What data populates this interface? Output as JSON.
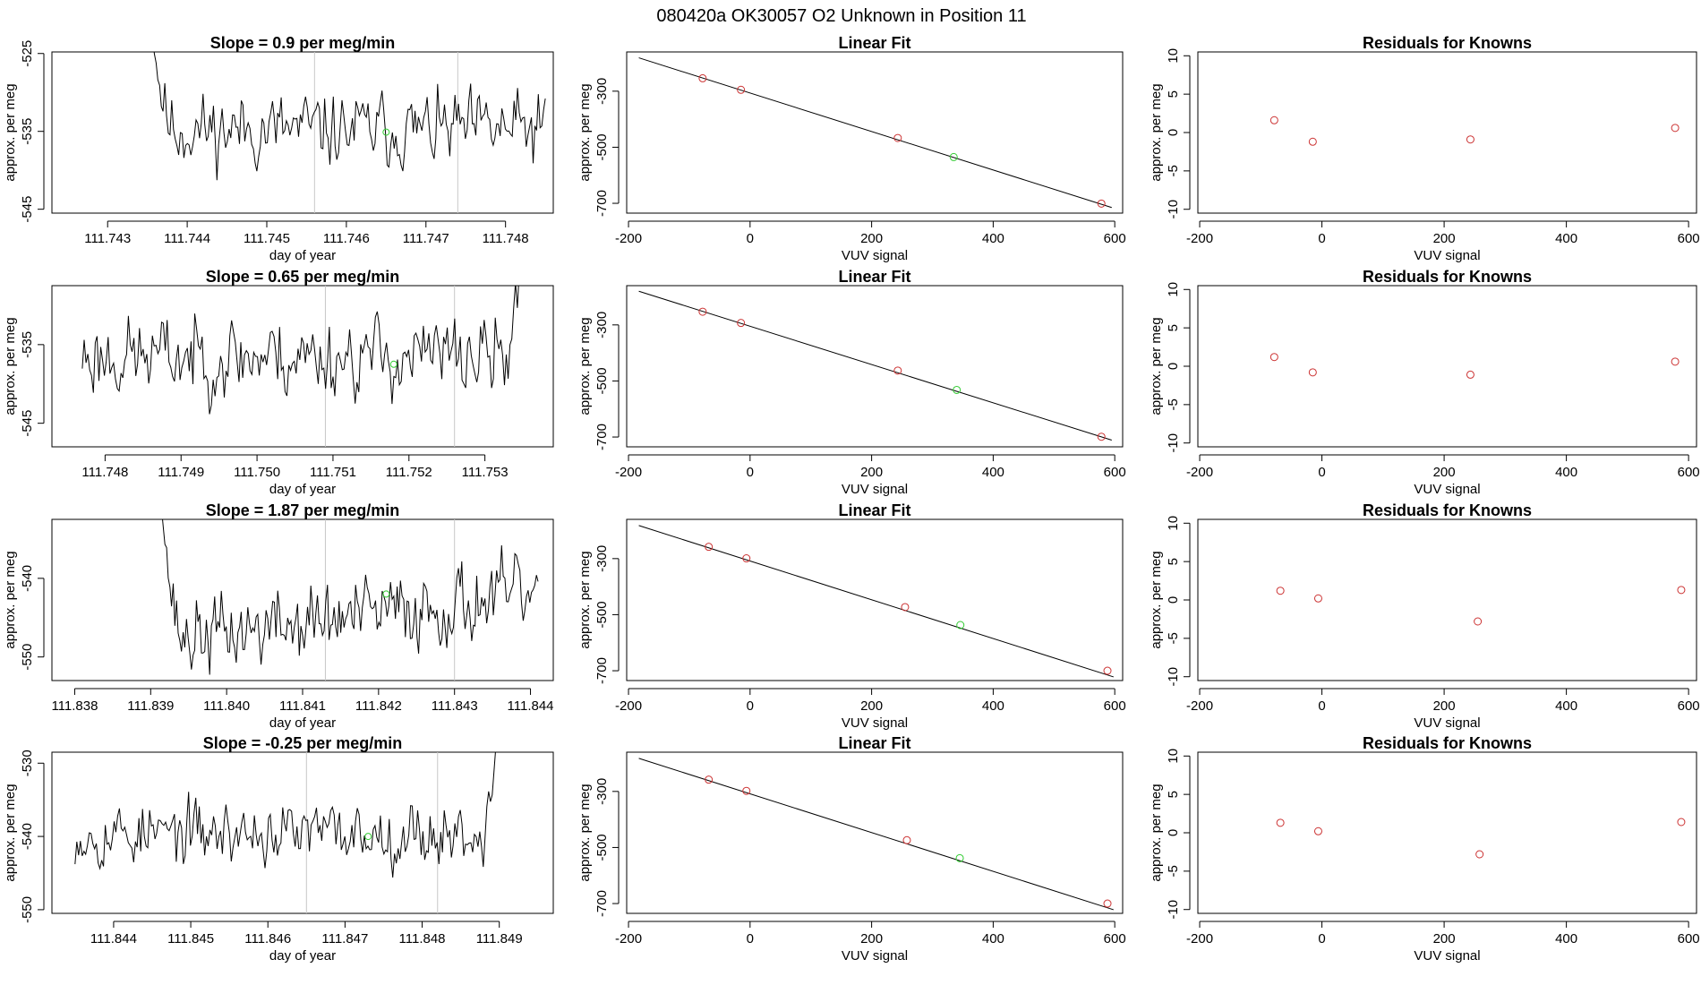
{
  "figure_title": "080420a      OK30057    O2 Unknown in Position  11",
  "colors": {
    "line": "#000000",
    "known": "#cc3333",
    "unknown": "#33cc33",
    "vline": "#c8c8c8"
  },
  "chart_data": [
    {
      "type": "line",
      "panel": "timeseries",
      "row": 0,
      "title": "Slope =  0.9  per meg/min",
      "xlabel": "day of year",
      "ylabel": "approx. per meg",
      "xlim": [
        111.7423,
        111.7486
      ],
      "ylim": [
        -545.5,
        -524.8
      ],
      "xticks": [
        "111.743",
        "111.744",
        "111.745",
        "111.746",
        "111.747",
        "111.748"
      ],
      "xtick_values": [
        111.743,
        111.744,
        111.745,
        111.746,
        111.747,
        111.748
      ],
      "yticks": [
        "-545",
        "-535",
        "-525"
      ],
      "ytick_values": [
        -545,
        -535,
        -525
      ],
      "vlines": [
        111.7456,
        111.7474
      ],
      "marker": [
        111.7465,
        -535.1
      ],
      "x_start": 111.7435,
      "x_end": 111.7485,
      "n": 230,
      "level": -534.8,
      "noise": 2.2,
      "start_high": -516,
      "seed": 11
    },
    {
      "type": "scatter",
      "panel": "fit",
      "row": 0,
      "title": "Linear Fit",
      "xlabel": "VUV signal",
      "ylabel": "approx. per meg",
      "xlim": [
        -203,
        613
      ],
      "ylim": [
        -735,
        -160
      ],
      "xticks": [
        "-200",
        "0",
        "200",
        "400",
        "600"
      ],
      "xtick_values": [
        -200,
        0,
        200,
        400,
        600
      ],
      "yticks": [
        "-700",
        "-500",
        "-300"
      ],
      "ytick_values": [
        -700,
        -500,
        -300
      ],
      "fit_line": [
        [
          -183,
          -181
        ],
        [
          595,
          -715
        ]
      ],
      "knowns": [
        [
          -78,
          -254
        ],
        [
          -15,
          -295
        ],
        [
          243,
          -467
        ],
        [
          578,
          -701
        ]
      ],
      "unknown": [
        [
          335,
          -535
        ]
      ]
    },
    {
      "type": "scatter",
      "panel": "residuals",
      "row": 0,
      "title": "Residuals for Knowns",
      "xlabel": "VUV signal",
      "ylabel": "approx. per meg",
      "xlim": [
        -203,
        613
      ],
      "ylim": [
        -10.5,
        10.5
      ],
      "xticks": [
        "-200",
        "0",
        "200",
        "400",
        "600"
      ],
      "xtick_values": [
        -200,
        0,
        200,
        400,
        600
      ],
      "yticks": [
        "-10",
        "-5",
        "0",
        "5",
        "10"
      ],
      "ytick_values": [
        -10,
        -5,
        0,
        5,
        10
      ],
      "points": [
        [
          -78,
          1.6
        ],
        [
          -15,
          -1.2
        ],
        [
          243,
          -0.9
        ],
        [
          578,
          0.6
        ]
      ]
    },
    {
      "type": "line",
      "panel": "timeseries",
      "row": 1,
      "title": "Slope =  0.65  per meg/min",
      "xlabel": "day of year",
      "ylabel": "approx. per meg",
      "xlim": [
        111.7473,
        111.7539
      ],
      "ylim": [
        -548,
        -527.5
      ],
      "xticks": [
        "111.748",
        "111.749",
        "111.750",
        "111.751",
        "111.752",
        "111.753"
      ],
      "xtick_values": [
        111.748,
        111.749,
        111.75,
        111.751,
        111.752,
        111.753
      ],
      "yticks": [
        "-545",
        "-535"
      ],
      "ytick_values": [
        -545,
        -535
      ],
      "vlines": [
        111.7509,
        111.7526
      ],
      "marker": [
        111.7518,
        -537.5
      ],
      "x_start": 111.7477,
      "x_end": 111.7535,
      "n": 240,
      "level": -536.5,
      "noise": 2.4,
      "end_high": -520,
      "seed": 23
    },
    {
      "type": "scatter",
      "panel": "fit",
      "row": 1,
      "title": "Linear Fit",
      "xlabel": "VUV signal",
      "ylabel": "approx. per meg",
      "xlim": [
        -203,
        613
      ],
      "ylim": [
        -735,
        -160
      ],
      "xticks": [
        "-200",
        "0",
        "200",
        "400",
        "600"
      ],
      "xtick_values": [
        -200,
        0,
        200,
        400,
        600
      ],
      "yticks": [
        "-700",
        "-500",
        "-300"
      ],
      "ytick_values": [
        -700,
        -500,
        -300
      ],
      "fit_line": [
        [
          -183,
          -180
        ],
        [
          595,
          -711
        ]
      ],
      "knowns": [
        [
          -78,
          -253
        ],
        [
          -15,
          -293
        ],
        [
          243,
          -463
        ],
        [
          578,
          -699
        ]
      ],
      "unknown": [
        [
          340,
          -532
        ]
      ]
    },
    {
      "type": "scatter",
      "panel": "residuals",
      "row": 1,
      "title": "Residuals for Knowns",
      "xlabel": "VUV signal",
      "ylabel": "approx. per meg",
      "xlim": [
        -203,
        613
      ],
      "ylim": [
        -10.5,
        10.5
      ],
      "xticks": [
        "-200",
        "0",
        "200",
        "400",
        "600"
      ],
      "xtick_values": [
        -200,
        0,
        200,
        400,
        600
      ],
      "yticks": [
        "-10",
        "-5",
        "0",
        "5",
        "10"
      ],
      "ytick_values": [
        -10,
        -5,
        0,
        5,
        10
      ],
      "points": [
        [
          -78,
          1.2
        ],
        [
          -15,
          -0.8
        ],
        [
          243,
          -1.1
        ],
        [
          578,
          0.6
        ]
      ]
    },
    {
      "type": "line",
      "panel": "timeseries",
      "row": 2,
      "title": "Slope =  1.87  per meg/min",
      "xlabel": "day of year",
      "ylabel": "approx. per meg",
      "xlim": [
        111.8377,
        111.8443
      ],
      "ylim": [
        -553,
        -532.5
      ],
      "xticks": [
        "111.838",
        "111.839",
        "111.840",
        "111.841",
        "111.842",
        "111.843",
        "111.844"
      ],
      "xtick_values": [
        111.838,
        111.839,
        111.84,
        111.841,
        111.842,
        111.843,
        111.844
      ],
      "yticks": [
        "-550",
        "-540"
      ],
      "ytick_values": [
        -550,
        -540
      ],
      "vlines": [
        111.8413,
        111.843
      ],
      "marker": [
        111.8421,
        -542.0
      ],
      "x_start": 111.8391,
      "x_end": 111.8441,
      "n": 230,
      "level": -545,
      "noise": 2.3,
      "start_high": -525,
      "trend": 6,
      "seed": 37
    },
    {
      "type": "scatter",
      "panel": "fit",
      "row": 2,
      "title": "Linear Fit",
      "xlabel": "VUV signal",
      "ylabel": "approx. per meg",
      "xlim": [
        -203,
        613
      ],
      "ylim": [
        -735,
        -160
      ],
      "xticks": [
        "-200",
        "0",
        "200",
        "400",
        "600"
      ],
      "xtick_values": [
        -200,
        0,
        200,
        400,
        600
      ],
      "yticks": [
        "-700",
        "-500",
        "-300"
      ],
      "ytick_values": [
        -700,
        -500,
        -300
      ],
      "fit_line": [
        [
          -183,
          -182
        ],
        [
          598,
          -722
        ]
      ],
      "knowns": [
        [
          -68,
          -258
        ],
        [
          -6,
          -299
        ],
        [
          255,
          -473
        ],
        [
          588,
          -700
        ]
      ],
      "unknown": [
        [
          346,
          -537
        ]
      ]
    },
    {
      "type": "scatter",
      "panel": "residuals",
      "row": 2,
      "title": "Residuals for Knowns",
      "xlabel": "VUV signal",
      "ylabel": "approx. per meg",
      "xlim": [
        -203,
        613
      ],
      "ylim": [
        -10.5,
        10.5
      ],
      "xticks": [
        "-200",
        "0",
        "200",
        "400",
        "600"
      ],
      "xtick_values": [
        -200,
        0,
        200,
        400,
        600
      ],
      "yticks": [
        "-10",
        "-5",
        "0",
        "5",
        "10"
      ],
      "ytick_values": [
        -10,
        -5,
        0,
        5,
        10
      ],
      "points": [
        [
          -68,
          1.2
        ],
        [
          -6,
          0.2
        ],
        [
          255,
          -2.8
        ],
        [
          588,
          1.3
        ]
      ]
    },
    {
      "type": "line",
      "panel": "timeseries",
      "row": 3,
      "title": "Slope =  -0.25  per meg/min",
      "xlabel": "day of year",
      "ylabel": "approx. per meg",
      "xlim": [
        111.8432,
        111.8497
      ],
      "ylim": [
        -550.5,
        -528.5
      ],
      "xticks": [
        "111.844",
        "111.845",
        "111.846",
        "111.847",
        "111.848",
        "111.849"
      ],
      "xtick_values": [
        111.844,
        111.845,
        111.846,
        111.847,
        111.848,
        111.849
      ],
      "yticks": [
        "-550",
        "-540",
        "-530"
      ],
      "ytick_values": [
        -550,
        -540,
        -530
      ],
      "vlines": [
        111.8465,
        111.8482
      ],
      "marker": [
        111.8473,
        -540.0
      ],
      "x_start": 111.8435,
      "x_end": 111.849,
      "n": 240,
      "level": -539.6,
      "noise": 2.0,
      "end_high": -522,
      "seed": 53
    },
    {
      "type": "scatter",
      "panel": "fit",
      "row": 3,
      "title": "Linear Fit",
      "xlabel": "VUV signal",
      "ylabel": "approx. per meg",
      "xlim": [
        -203,
        613
      ],
      "ylim": [
        -735,
        -160
      ],
      "xticks": [
        "-200",
        "0",
        "200",
        "400",
        "600"
      ],
      "xtick_values": [
        -200,
        0,
        200,
        400,
        600
      ],
      "yticks": [
        "-700",
        "-500",
        "-300"
      ],
      "ytick_values": [
        -700,
        -500,
        -300
      ],
      "fit_line": [
        [
          -183,
          -182
        ],
        [
          598,
          -722
        ]
      ],
      "knowns": [
        [
          -68,
          -258
        ],
        [
          -6,
          -298
        ],
        [
          258,
          -474
        ],
        [
          588,
          -700
        ]
      ],
      "unknown": [
        [
          345,
          -538
        ]
      ]
    },
    {
      "type": "scatter",
      "panel": "residuals",
      "row": 3,
      "title": "Residuals for Knowns",
      "xlabel": "VUV signal",
      "ylabel": "approx. per meg",
      "xlim": [
        -203,
        613
      ],
      "ylim": [
        -10.5,
        10.5
      ],
      "xticks": [
        "-200",
        "0",
        "200",
        "400",
        "600"
      ],
      "xtick_values": [
        -200,
        0,
        200,
        400,
        600
      ],
      "yticks": [
        "-10",
        "-5",
        "0",
        "5",
        "10"
      ],
      "ytick_values": [
        -10,
        -5,
        0,
        5,
        10
      ],
      "points": [
        [
          -68,
          1.3
        ],
        [
          -6,
          0.2
        ],
        [
          258,
          -2.8
        ],
        [
          588,
          1.4
        ]
      ]
    }
  ]
}
